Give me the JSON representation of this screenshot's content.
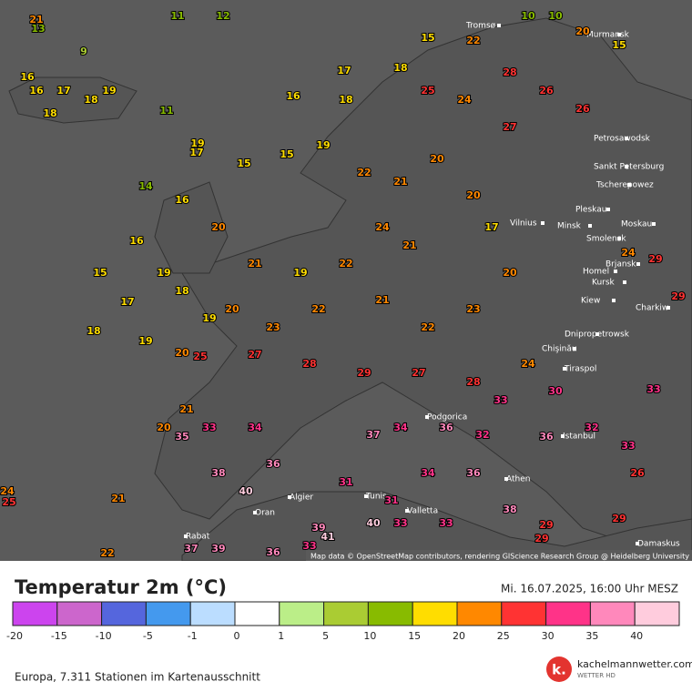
{
  "map": {
    "cities": [
      "Tromsø",
      "Murmansk",
      "Petrosawodsk",
      "Sankt Petersburg",
      "Tscherepowez",
      "Pleskau",
      "Moskau",
      "Minsk",
      "Smolensk",
      "Vilnius",
      "Brjansk",
      "Homel",
      "Kursk",
      "Kiew",
      "Charkiw",
      "Dnipropetrowsk",
      "Chişinău",
      "Tiraspol",
      "Podgorica",
      "Istanbul",
      "Algier",
      "Tunis",
      "Oran",
      "Rabat",
      "Valletta",
      "Athen",
      "Damaskus"
    ],
    "stations": [
      16,
      17,
      18,
      19,
      18,
      16,
      9,
      11,
      12,
      11,
      14,
      15,
      17,
      18,
      16,
      21,
      13,
      17,
      16,
      19,
      17,
      15,
      15,
      19,
      18,
      18,
      15,
      22,
      10,
      10,
      20,
      15,
      25,
      24,
      28,
      26,
      26,
      27,
      22,
      21,
      20,
      20,
      17,
      20,
      24,
      21,
      22,
      19,
      21,
      20,
      16,
      19,
      18,
      19,
      20,
      19,
      20,
      25,
      23,
      22,
      21,
      22,
      23,
      27,
      28,
      29,
      27,
      28,
      24,
      30,
      24,
      29,
      29,
      33,
      33,
      34,
      38,
      40,
      36,
      35,
      21,
      20,
      21,
      24,
      25,
      22,
      37,
      39,
      36,
      33,
      37,
      34,
      36,
      32,
      36,
      38,
      36,
      32,
      33,
      26,
      29,
      29,
      33,
      33,
      39,
      41,
      40,
      31,
      31,
      34,
      33,
      29
    ],
    "attribution": "Map data © OpenStreetMap contributors, rendering GIScience Research Group @ Heidelberg University"
  },
  "legend": {
    "title": "Temperatur 2m (°C)",
    "date": "Mi. 16.07.2025, 16:00 Uhr MESZ",
    "colors": [
      "#cc44ee",
      "#cc66cc",
      "#5566dd",
      "#4499ee",
      "#bbddff",
      "#ffffff",
      "#bbee88",
      "#aacc33",
      "#88bb00",
      "#ffdd00",
      "#ff8800",
      "#ff3333",
      "#ff3388",
      "#ff88bb",
      "#ffccdd"
    ],
    "labels": [
      -20,
      -15,
      -10,
      -5,
      -1,
      0,
      1,
      5,
      10,
      15,
      20,
      25,
      30,
      35,
      40
    ]
  },
  "footer": {
    "stations_note": "Europa, 7.311 Stationen im Kartenausschnitt",
    "brand": "kachelmannwetter.com",
    "brand_sub": "WETTER HD",
    "logo_letter": "k."
  }
}
